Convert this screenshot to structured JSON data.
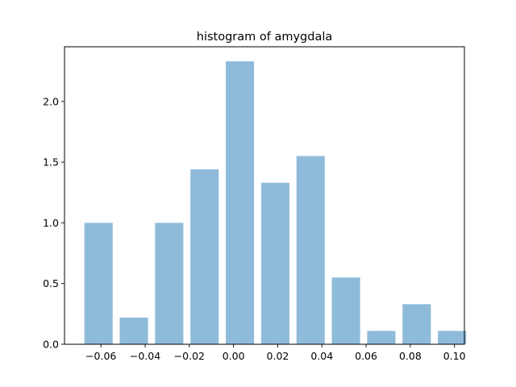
{
  "chart_data": {
    "type": "bar",
    "title": "histogram of amygdala",
    "xlabel": "",
    "ylabel": "",
    "bin_width": 0.016,
    "bar_width": 0.0128,
    "x": [
      -0.0595,
      -0.0435,
      -0.0275,
      -0.0115,
      0.0045,
      0.0205,
      0.0365,
      0.0525,
      0.0685,
      0.0845,
      0.1005
    ],
    "values": [
      1.0,
      0.22,
      1.0,
      1.44,
      2.33,
      1.33,
      1.55,
      0.55,
      0.11,
      0.33,
      0.11
    ],
    "xlim": [
      -0.0765,
      0.1045
    ],
    "ylim": [
      0,
      2.45
    ],
    "xticks": [
      -0.06,
      -0.04,
      -0.02,
      0.0,
      0.02,
      0.04,
      0.06,
      0.08,
      0.1
    ],
    "xtick_labels": [
      "−0.06",
      "−0.04",
      "−0.02",
      "0.00",
      "0.02",
      "0.04",
      "0.06",
      "0.08",
      "0.10"
    ],
    "yticks": [
      0.0,
      0.5,
      1.0,
      1.5,
      2.0
    ],
    "ytick_labels": [
      "0.0",
      "0.5",
      "1.0",
      "1.5",
      "2.0"
    ],
    "bar_color": "#8fbbda",
    "grid": false,
    "legend": "none"
  }
}
